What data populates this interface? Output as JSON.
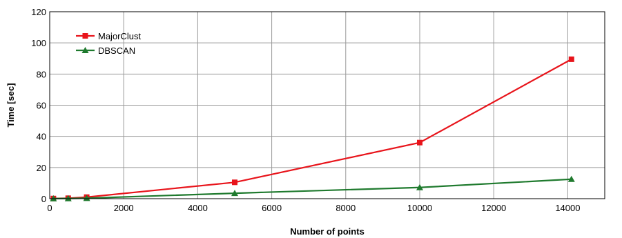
{
  "chart_data": {
    "type": "line",
    "title": "",
    "xlabel": "Number of points",
    "ylabel": "Time [sec]",
    "xlim": [
      0,
      15000
    ],
    "ylim": [
      0,
      120
    ],
    "xticks": [
      0,
      2000,
      4000,
      6000,
      8000,
      10000,
      12000,
      14000
    ],
    "yticks": [
      0,
      20,
      40,
      60,
      80,
      100,
      120
    ],
    "xtick_labels": [
      "0",
      "2000",
      "4000",
      "6000",
      "8000",
      "10000",
      "12000",
      "14000"
    ],
    "ytick_labels": [
      "0",
      "20",
      "40",
      "60",
      "80",
      "100",
      "120"
    ],
    "grid": true,
    "legend_position": "top-left",
    "series": [
      {
        "name": "MajorClust",
        "color": "#e8141b",
        "marker": "square",
        "x": [
          100,
          500,
          1000,
          5000,
          10000,
          14100
        ],
        "y": [
          0.1,
          0.3,
          1.0,
          10.5,
          36,
          89.5
        ]
      },
      {
        "name": "DBSCAN",
        "color": "#1f7a2e",
        "marker": "triangle",
        "x": [
          100,
          500,
          1000,
          5000,
          10000,
          14100
        ],
        "y": [
          0.05,
          0.1,
          0.3,
          3.5,
          7.2,
          12.5
        ]
      }
    ]
  }
}
